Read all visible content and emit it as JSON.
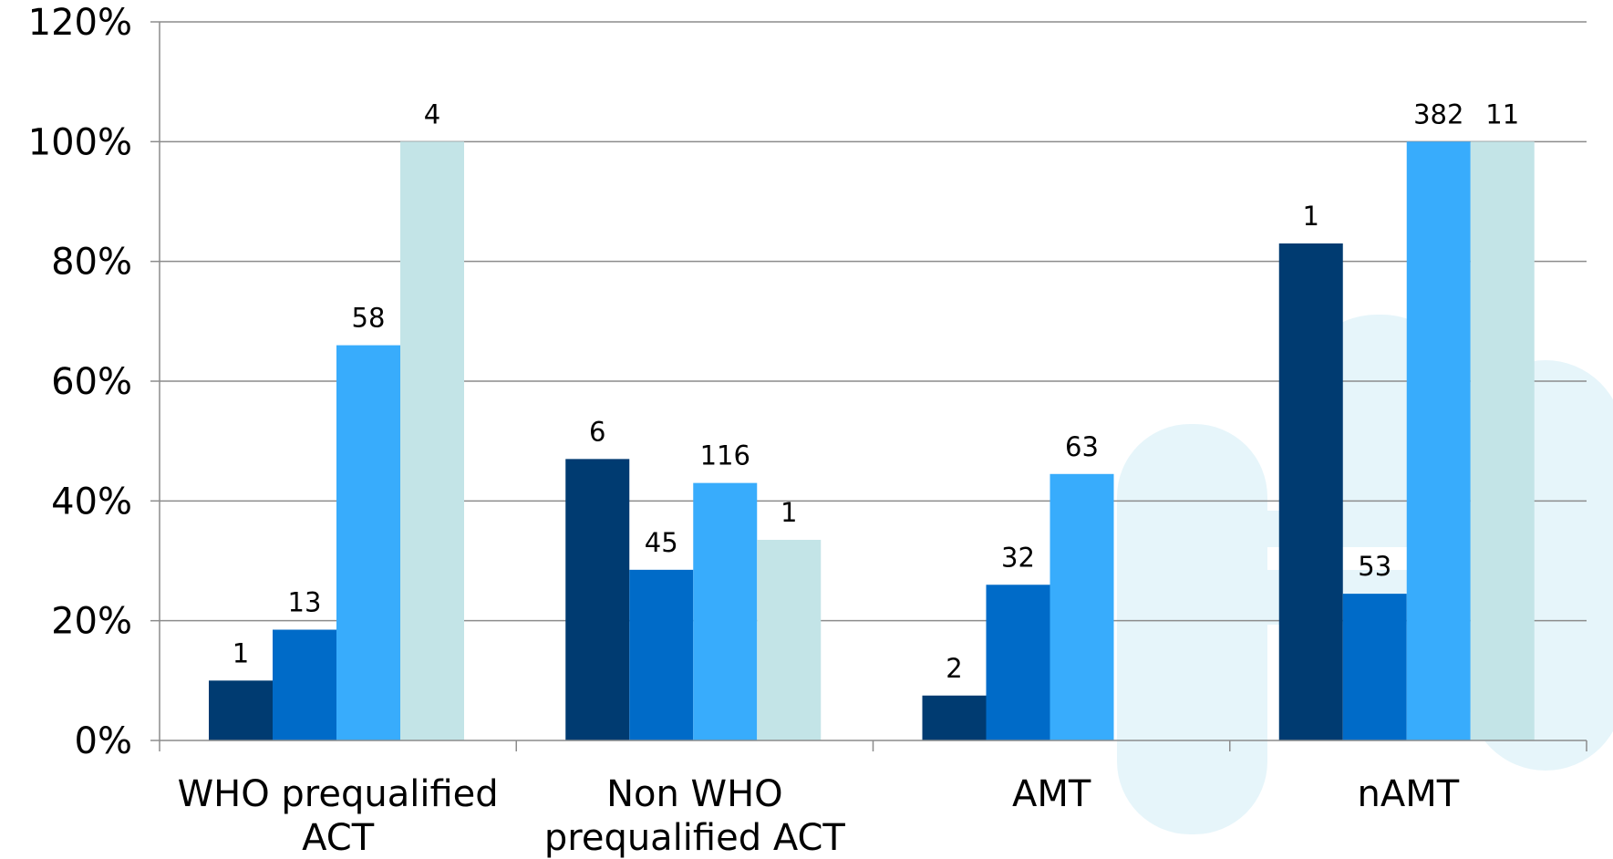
{
  "chart_data": {
    "type": "bar",
    "categories": [
      [
        "WHO prequalified",
        "ACT"
      ],
      [
        "Non WHO",
        "prequalified ACT"
      ],
      [
        "AMT"
      ],
      [
        "nAMT"
      ]
    ],
    "series_colors": [
      "#003b71",
      "#006bc8",
      "#38acfc",
      "#c3e4e7"
    ],
    "series": [
      {
        "values": [
          10,
          47,
          7.5,
          83
        ],
        "labels": [
          "1",
          "6",
          "2",
          "1"
        ]
      },
      {
        "values": [
          18.5,
          28.5,
          26,
          24.5
        ],
        "labels": [
          "13",
          "45",
          "32",
          "53"
        ]
      },
      {
        "values": [
          66,
          43,
          44.5,
          100
        ],
        "labels": [
          "58",
          "116",
          "63",
          "382"
        ]
      },
      {
        "values": [
          100,
          33.5,
          null,
          100
        ],
        "labels": [
          "4",
          "1",
          null,
          "11"
        ]
      }
    ],
    "ylim": [
      0,
      120
    ],
    "yticks": [
      0,
      20,
      40,
      60,
      80,
      100,
      120
    ],
    "ytick_labels": [
      "0%",
      "20%",
      "40%",
      "60%",
      "80%",
      "100%",
      "120%"
    ],
    "grid": true,
    "legend": "none"
  },
  "colors": {
    "gridline": "#8c8c8c",
    "watermark": "#e6f5fa"
  }
}
